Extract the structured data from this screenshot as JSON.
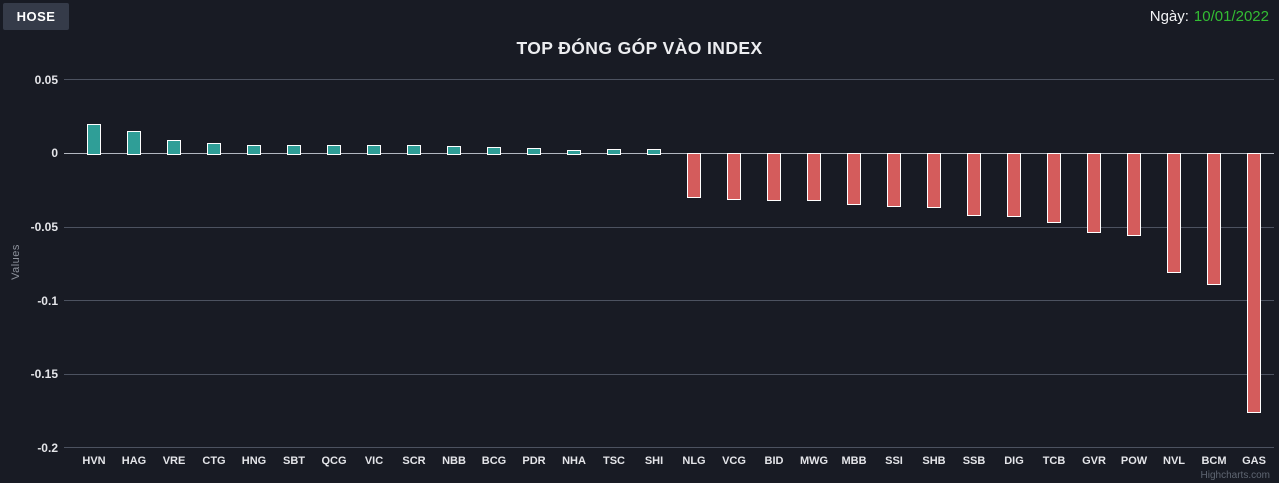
{
  "header": {
    "tab_label": "HOSE",
    "date_label": "Ngày:",
    "date_value": "10/01/2022",
    "date_color": "#33bd33"
  },
  "chart_data": {
    "type": "bar",
    "title": "TOP ĐÓNG GÓP VÀO INDEX",
    "ylabel": "Values",
    "xlabel": "",
    "ylim": [
      -0.2,
      0.05
    ],
    "yticks": [
      0.05,
      0,
      -0.05,
      -0.1,
      -0.15,
      -0.2
    ],
    "grid": true,
    "legend_position": "none",
    "categories": [
      "HVN",
      "HAG",
      "VRE",
      "CTG",
      "HNG",
      "SBT",
      "QCG",
      "VIC",
      "SCR",
      "NBB",
      "BCG",
      "PDR",
      "NHA",
      "TSC",
      "SHI",
      "NLG",
      "VCG",
      "BID",
      "MWG",
      "MBB",
      "SSI",
      "SHB",
      "SSB",
      "DIG",
      "TCB",
      "GVR",
      "POW",
      "NVL",
      "BCM",
      "GAS"
    ],
    "values": [
      0.02,
      0.015,
      0.009,
      0.007,
      0.006,
      0.0055,
      0.0055,
      0.0055,
      0.0055,
      0.005,
      0.0045,
      0.004,
      0.0025,
      0.003,
      0.003,
      -0.029,
      -0.03,
      -0.031,
      -0.031,
      -0.034,
      -0.035,
      -0.036,
      -0.041,
      -0.042,
      -0.046,
      -0.053,
      -0.055,
      -0.08,
      -0.088,
      -0.175
    ],
    "positive_color": "#2f9e97",
    "negative_color": "#d45c5c",
    "bar_border_color": "#ffffff",
    "credit": "Highcharts.com"
  },
  "colors": {
    "background": "#181b24",
    "tab_background": "#353b49",
    "grid": "#4c5260",
    "zero_line": "#b2b7c0",
    "text": "#e4e5e9",
    "muted": "#8d929c"
  }
}
